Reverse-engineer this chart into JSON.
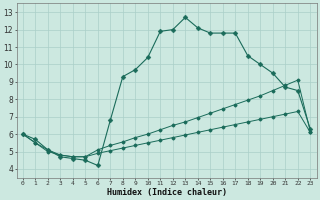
{
  "xlabel": "Humidex (Indice chaleur)",
  "bg_color": "#cce8e0",
  "grid_color": "#aacfc8",
  "line_color": "#1a6b5a",
  "xlim": [
    -0.5,
    23.5
  ],
  "ylim": [
    3.5,
    13.5
  ],
  "xticks": [
    0,
    1,
    2,
    3,
    4,
    5,
    6,
    7,
    8,
    9,
    10,
    11,
    12,
    13,
    14,
    15,
    16,
    17,
    18,
    19,
    20,
    21,
    22,
    23
  ],
  "yticks": [
    4,
    5,
    6,
    7,
    8,
    9,
    10,
    11,
    12,
    13
  ],
  "curve1_x": [
    0,
    1,
    2,
    3,
    4,
    5,
    6,
    7,
    8,
    9,
    10,
    11,
    12,
    13,
    14,
    15,
    16,
    17,
    18,
    19,
    20,
    21,
    22,
    23
  ],
  "curve1_y": [
    6.0,
    5.7,
    5.1,
    4.7,
    4.6,
    4.5,
    4.2,
    6.8,
    9.3,
    9.7,
    10.4,
    11.9,
    12.0,
    12.7,
    12.1,
    11.8,
    11.8,
    11.8,
    10.5,
    10.0,
    9.5,
    8.7,
    8.5,
    6.3
  ],
  "curve2_x": [
    0,
    1,
    2,
    3,
    4,
    5,
    6,
    7,
    8,
    9,
    10,
    11,
    12,
    13,
    14,
    15,
    16,
    17,
    18,
    19,
    20,
    21,
    22,
    23
  ],
  "curve2_y": [
    6.0,
    5.5,
    5.1,
    4.8,
    4.7,
    4.7,
    5.1,
    5.35,
    5.55,
    5.8,
    6.0,
    6.25,
    6.5,
    6.7,
    6.95,
    7.2,
    7.45,
    7.7,
    7.95,
    8.2,
    8.5,
    8.8,
    9.1,
    6.15
  ],
  "curve3_x": [
    0,
    1,
    2,
    3,
    4,
    5,
    6,
    7,
    8,
    9,
    10,
    11,
    12,
    13,
    14,
    15,
    16,
    17,
    18,
    19,
    20,
    21,
    22,
    23
  ],
  "curve3_y": [
    6.0,
    5.5,
    5.0,
    4.8,
    4.7,
    4.7,
    4.9,
    5.05,
    5.2,
    5.35,
    5.5,
    5.65,
    5.8,
    5.95,
    6.1,
    6.25,
    6.4,
    6.55,
    6.7,
    6.85,
    7.0,
    7.15,
    7.3,
    6.1
  ]
}
